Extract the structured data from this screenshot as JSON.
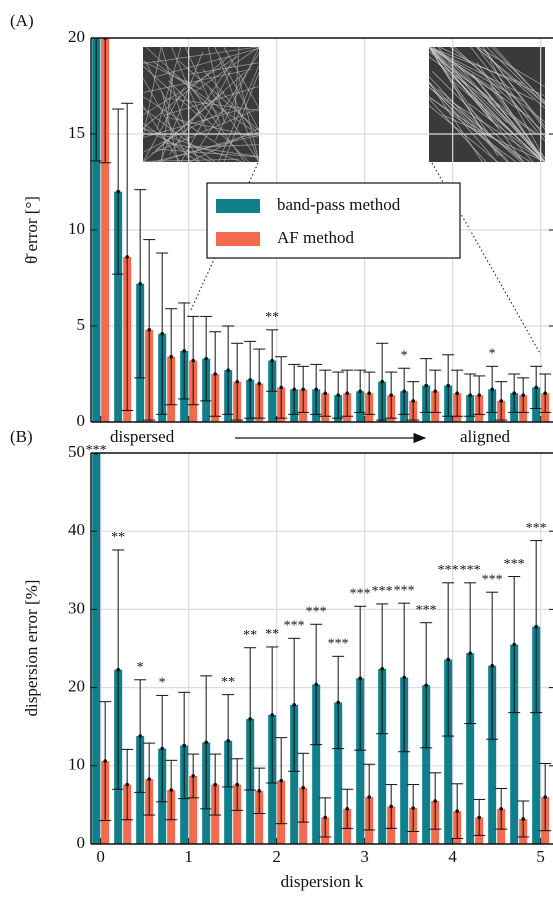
{
  "chart_data": [
    {
      "type": "bar",
      "panel": "(A)",
      "ylabel": "θ̄ error [°]",
      "arrow_labels": [
        "dispersed",
        "aligned"
      ],
      "x": [
        0,
        0.25,
        0.5,
        0.75,
        1,
        1.25,
        1.5,
        1.75,
        2,
        2.25,
        2.5,
        2.75,
        3,
        3.25,
        3.5,
        3.75,
        4,
        4.25,
        4.5,
        4.75,
        5
      ],
      "xlim": [
        -0.11,
        5.14
      ],
      "xticks": [
        0,
        1,
        2,
        3,
        4,
        5
      ],
      "ylim": [
        0,
        20
      ],
      "yticks": [
        0,
        5,
        10,
        15,
        20
      ],
      "grid": true,
      "series": [
        {
          "name": "band-pass method",
          "color": "#0f7f8b",
          "values": [
            21,
            12,
            7.2,
            4.6,
            3.7,
            3.3,
            2.7,
            2.2,
            3.2,
            1.7,
            1.7,
            1.4,
            1.6,
            2.1,
            1.6,
            1.9,
            1.9,
            1.4,
            1.7,
            1.5,
            1.8
          ],
          "errors": [
            7.4,
            4.3,
            4.9,
            4.2,
            2.5,
            2.2,
            2.3,
            2.0,
            1.6,
            1.3,
            1.3,
            1.2,
            1.1,
            2.0,
            1.2,
            1.4,
            1.6,
            1.1,
            1.2,
            1.0,
            1.1
          ]
        },
        {
          "name": "AF method",
          "color": "#f26b4f",
          "values": [
            20,
            8.6,
            4.8,
            3.4,
            3.2,
            2.5,
            2.1,
            2.0,
            1.8,
            1.7,
            1.5,
            1.5,
            1.5,
            1.4,
            1.1,
            1.6,
            1.5,
            1.4,
            1.1,
            1.4,
            1.5
          ],
          "errors": [
            6.5,
            8,
            4.7,
            2.5,
            2.3,
            2.2,
            2.0,
            1.8,
            1.6,
            1.2,
            1.2,
            1.2,
            1.1,
            1.2,
            1.0,
            1.1,
            1.2,
            1.0,
            1.0,
            0.9,
            1.0
          ]
        }
      ],
      "significance": [
        null,
        null,
        null,
        null,
        null,
        null,
        null,
        null,
        "**",
        null,
        null,
        null,
        null,
        null,
        "*",
        null,
        null,
        null,
        "*",
        null,
        null
      ],
      "legend": "upper right"
    },
    {
      "type": "bar",
      "panel": "(B)",
      "ylabel": "dispersion error [%]",
      "xlabel": "dispersion k",
      "x": [
        0,
        0.25,
        0.5,
        0.75,
        1,
        1.25,
        1.5,
        1.75,
        2,
        2.25,
        2.5,
        2.75,
        3,
        3.25,
        3.5,
        3.75,
        4,
        4.25,
        4.5,
        4.75,
        5
      ],
      "xlim": [
        -0.11,
        5.14
      ],
      "xticks": [
        0,
        1,
        2,
        3,
        4,
        5
      ],
      "ylim": [
        0,
        50
      ],
      "yticks": [
        0,
        10,
        20,
        30,
        40,
        50
      ],
      "grid": true,
      "series": [
        {
          "color": "#0f7f8b",
          "values": [
            50,
            22.3,
            13.8,
            12.2,
            12.6,
            13,
            13.2,
            16,
            16.5,
            17.8,
            20.4,
            18.1,
            21.2,
            22.4,
            21.3,
            20.3,
            23.6,
            24.4,
            22.8,
            25.5,
            27.8
          ],
          "errors": [
            0,
            15.3,
            7.2,
            6.8,
            6.8,
            8.5,
            5.9,
            9.1,
            8.7,
            8.5,
            7.7,
            5.9,
            9.2,
            8.3,
            9.5,
            8.0,
            9.8,
            9.0,
            9.4,
            8.7,
            11
          ]
        },
        {
          "color": "#f26b4f",
          "values": [
            10.6,
            7.6,
            8.3,
            6.9,
            8.7,
            7.6,
            7.6,
            6.8,
            8.1,
            7.2,
            3.4,
            4.5,
            6.0,
            4.8,
            4.6,
            5.5,
            4.2,
            3.4,
            4.5,
            3.2,
            6.0
          ],
          "errors": [
            7.6,
            4.5,
            4.6,
            3.8,
            2.8,
            3.9,
            3.3,
            2.9,
            5.5,
            4.4,
            2.5,
            2.5,
            4.2,
            2.8,
            3.0,
            3.6,
            3.5,
            2.3,
            2.6,
            2.3,
            4.3
          ]
        }
      ],
      "significance": [
        "***",
        "**",
        "*",
        "*",
        null,
        null,
        "**",
        "**",
        "**",
        "***",
        "***",
        "***",
        "***",
        "***",
        "***",
        "***",
        "***",
        "***",
        "***",
        "***",
        "***"
      ]
    }
  ]
}
